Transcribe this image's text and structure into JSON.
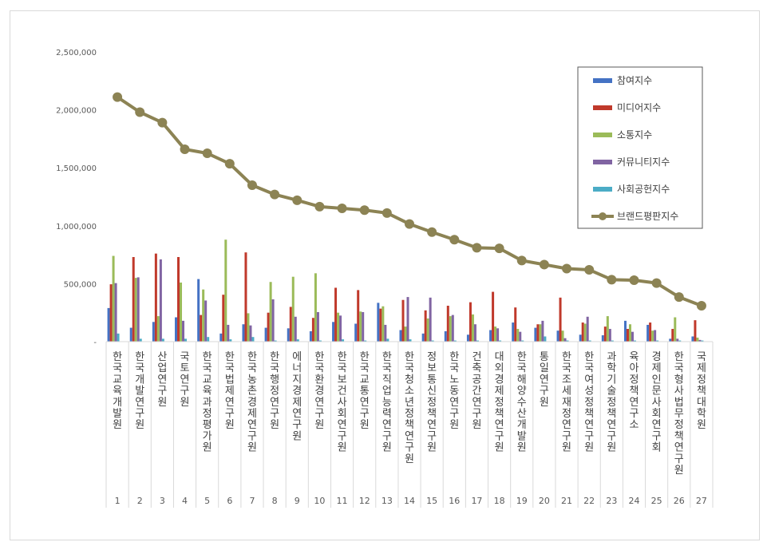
{
  "chart_data": {
    "type": "bar+line",
    "title": "",
    "xlabel": "",
    "ylabel": "",
    "ylim": [
      0,
      2500000
    ],
    "yticks": [
      "-",
      "500,000",
      "1,000,000",
      "1,500,000",
      "2,000,000",
      "2,500,000"
    ],
    "grid": false,
    "legend_position": "top-right",
    "ranks": [
      "1",
      "2",
      "3",
      "4",
      "5",
      "6",
      "7",
      "8",
      "9",
      "10",
      "11",
      "12",
      "13",
      "14",
      "15",
      "16",
      "17",
      "18",
      "19",
      "20",
      "21",
      "22",
      "23",
      "24",
      "25",
      "26",
      "27"
    ],
    "categories": [
      "한국교육개발원",
      "한국개발연구원",
      "산업연구원",
      "국토연구원",
      "한국교육과정평가원",
      "한국법제연구원",
      "한국농촌경제연구원",
      "한국행정연구원",
      "에너지경제연구원",
      "한국환경연구원",
      "한국보건사회연구원",
      "한국교통연구원",
      "한국직업능력연구원",
      "한국청소년정책연구원",
      "정보통신정책연구원",
      "한국노동연구원",
      "건축공간연구원",
      "대외경제정책연구원",
      "한국해양수산개발원",
      "통일연구원",
      "한국조세재정연구원",
      "한국여성정책연구원",
      "과학기술정책연구원",
      "육아정책연구소",
      "경제인문사회연구회",
      "한국형사법무정책연구원",
      "국제정책대학원"
    ],
    "series": [
      {
        "name": "참여지수",
        "color": "#4472c4",
        "values": [
          290000,
          120000,
          170000,
          210000,
          540000,
          70000,
          150000,
          120000,
          115000,
          90000,
          170000,
          155000,
          335000,
          100000,
          70000,
          90000,
          60000,
          100000,
          165000,
          120000,
          95000,
          60000,
          55000,
          180000,
          145000,
          25000,
          45000
        ]
      },
      {
        "name": "미디어지수",
        "color": "#c0392b",
        "values": [
          495000,
          730000,
          760000,
          730000,
          230000,
          405000,
          770000,
          250000,
          300000,
          205000,
          465000,
          445000,
          285000,
          360000,
          270000,
          310000,
          340000,
          430000,
          295000,
          150000,
          380000,
          165000,
          130000,
          110000,
          165000,
          110000,
          185000
        ]
      },
      {
        "name": "소통지수",
        "color": "#9bbb59",
        "values": [
          740000,
          550000,
          220000,
          510000,
          450000,
          880000,
          245000,
          515000,
          560000,
          590000,
          250000,
          260000,
          305000,
          130000,
          200000,
          220000,
          235000,
          130000,
          110000,
          150000,
          95000,
          155000,
          220000,
          150000,
          95000,
          210000,
          35000
        ]
      },
      {
        "name": "커뮤니티지수",
        "color": "#8064a2",
        "values": [
          505000,
          555000,
          710000,
          180000,
          355000,
          145000,
          140000,
          365000,
          215000,
          255000,
          225000,
          255000,
          145000,
          385000,
          380000,
          230000,
          150000,
          115000,
          85000,
          180000,
          30000,
          215000,
          110000,
          85000,
          100000,
          25000,
          15000
        ]
      },
      {
        "name": "사회공헌지수",
        "color": "#4bacc6",
        "values": [
          70000,
          25000,
          25000,
          25000,
          40000,
          20000,
          40000,
          10000,
          20000,
          10000,
          20000,
          10000,
          25000,
          20000,
          10000,
          10000,
          10000,
          10000,
          10000,
          45000,
          10000,
          10000,
          10000,
          10000,
          10000,
          10000,
          10000
        ]
      }
    ],
    "line": {
      "name": "브랜드평판지수",
      "color": "#8c8354",
      "values": [
        2110000,
        1980000,
        1890000,
        1660000,
        1625000,
        1535000,
        1350000,
        1270000,
        1220000,
        1165000,
        1150000,
        1135000,
        1110000,
        1015000,
        945000,
        880000,
        810000,
        805000,
        700000,
        665000,
        630000,
        620000,
        535000,
        530000,
        505000,
        385000,
        310000
      ]
    }
  }
}
